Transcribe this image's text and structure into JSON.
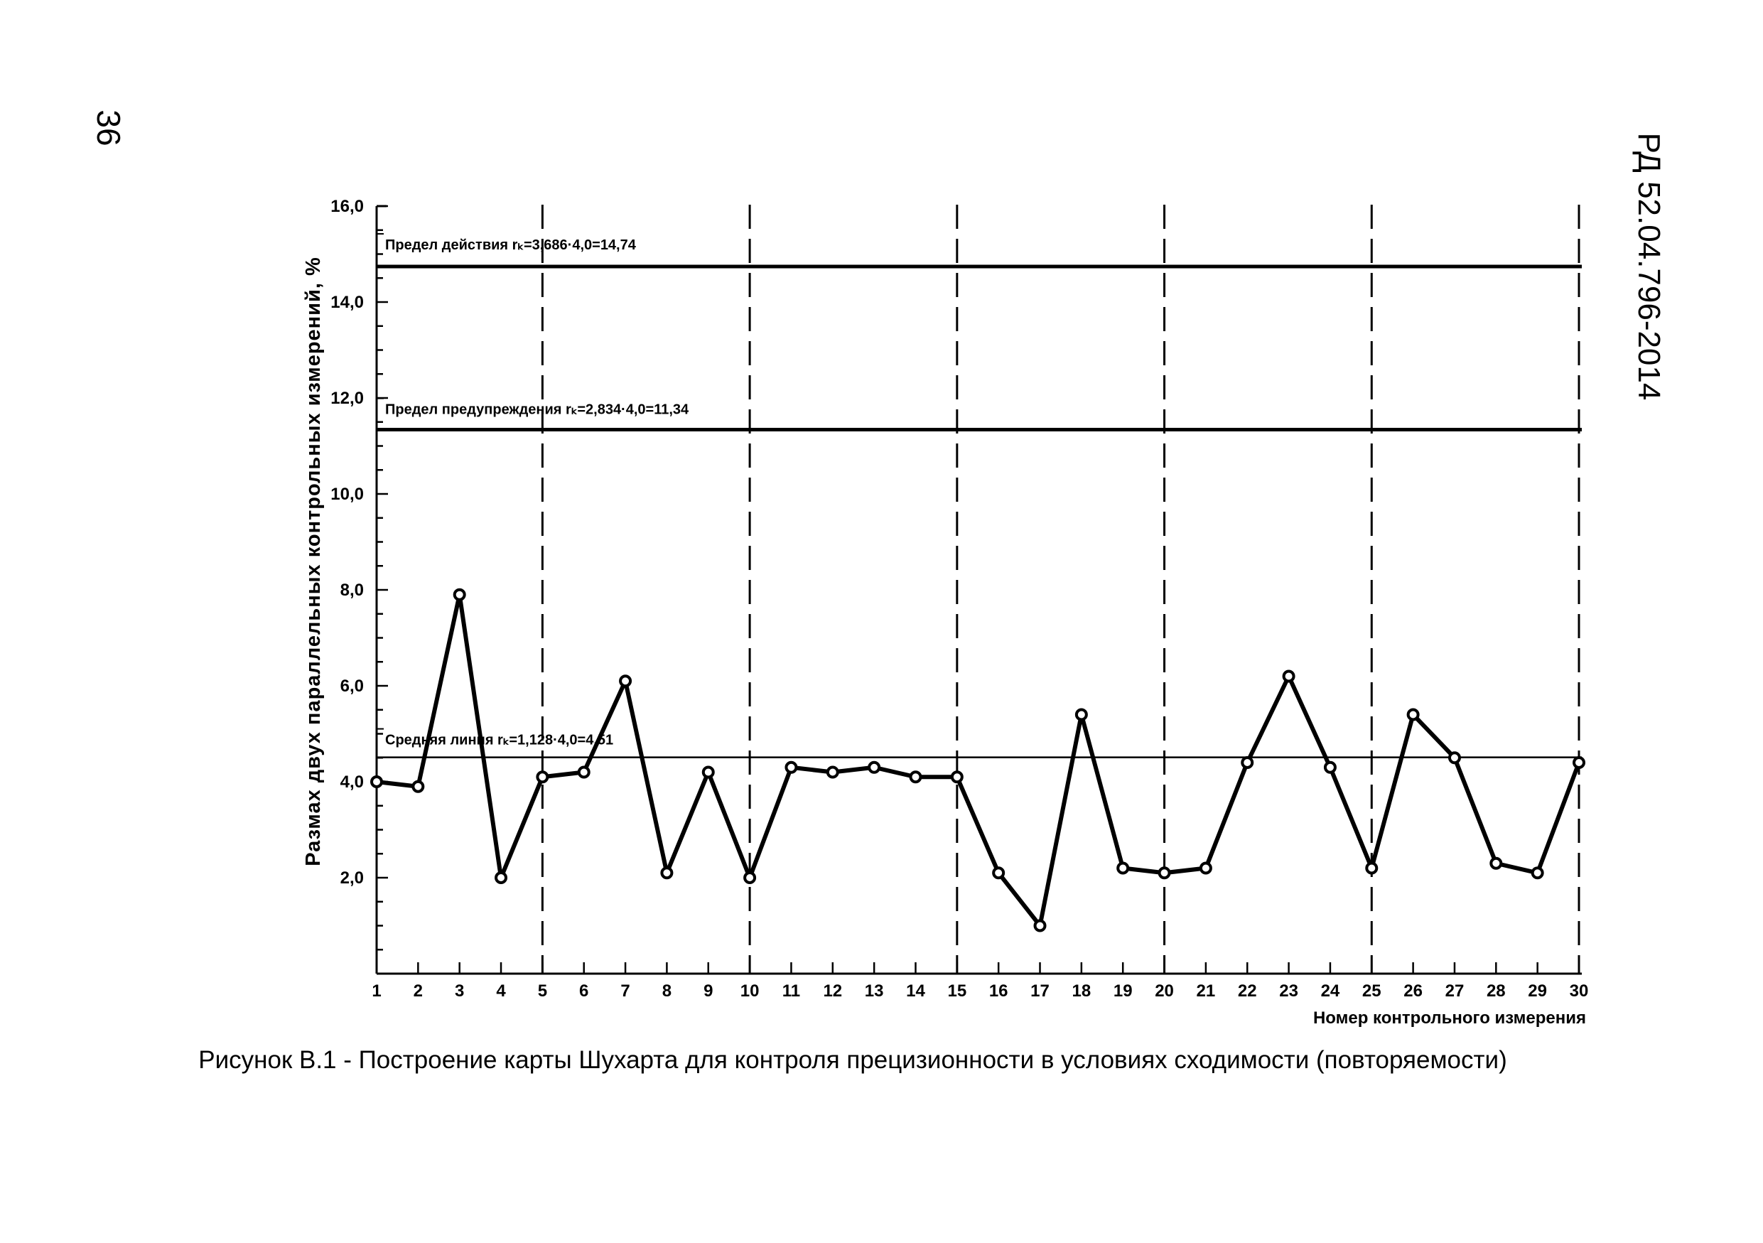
{
  "page": {
    "number": "36",
    "doc_code": "РД 52.04.796-2014"
  },
  "caption": "Рисунок В.1 - Построение карты Шухарта для контроля прецизионности в условиях сходимости (повторяемости)",
  "chart_data": {
    "type": "line",
    "title": "",
    "xlabel": "Номер контрольного измерения",
    "ylabel": "Размах двух параллельных контрольных измерений, %",
    "ylim": [
      0,
      16
    ],
    "xlim": [
      1,
      30
    ],
    "y_ticks": [
      "2,0",
      "4,0",
      "6,0",
      "8,0",
      "10,0",
      "12,0",
      "14,0",
      "16,0"
    ],
    "x_ticks": [
      "1",
      "2",
      "3",
      "4",
      "5",
      "6",
      "7",
      "8",
      "9",
      "10",
      "11",
      "12",
      "13",
      "14",
      "15",
      "16",
      "17",
      "18",
      "19",
      "20",
      "21",
      "22",
      "23",
      "24",
      "25",
      "26",
      "27",
      "28",
      "29",
      "30"
    ],
    "dashed_vlines_at": [
      5,
      10,
      15,
      20,
      25,
      30
    ],
    "limits": [
      {
        "label": "Предел действия rₖ=3,686·4,0=14,74",
        "value": 14.74,
        "style": "thick"
      },
      {
        "label": "Предел предупреждения rₖ=2,834·4,0=11,34",
        "value": 11.34,
        "style": "thick"
      },
      {
        "label": "Средняя линия rₖ=1,128·4,0=4,51",
        "value": 4.51,
        "style": "thin"
      }
    ],
    "series": [
      {
        "x": [
          1,
          2,
          3,
          4,
          5,
          6,
          7,
          8,
          9,
          10,
          11,
          12,
          13,
          14,
          15,
          16,
          17,
          18,
          19,
          20,
          21,
          22,
          23,
          24,
          25,
          26,
          27,
          28,
          29,
          30
        ],
        "values": [
          4.0,
          3.9,
          7.9,
          2.0,
          4.1,
          4.2,
          6.1,
          2.1,
          4.2,
          2.0,
          4.3,
          4.2,
          4.3,
          4.1,
          4.1,
          2.1,
          1.0,
          5.4,
          2.2,
          2.1,
          2.2,
          4.4,
          6.2,
          4.3,
          2.2,
          5.4,
          4.5,
          2.3,
          2.1,
          4.4
        ]
      }
    ],
    "grid": false,
    "colors": {
      "line": "#000000",
      "background": "#ffffff"
    }
  }
}
